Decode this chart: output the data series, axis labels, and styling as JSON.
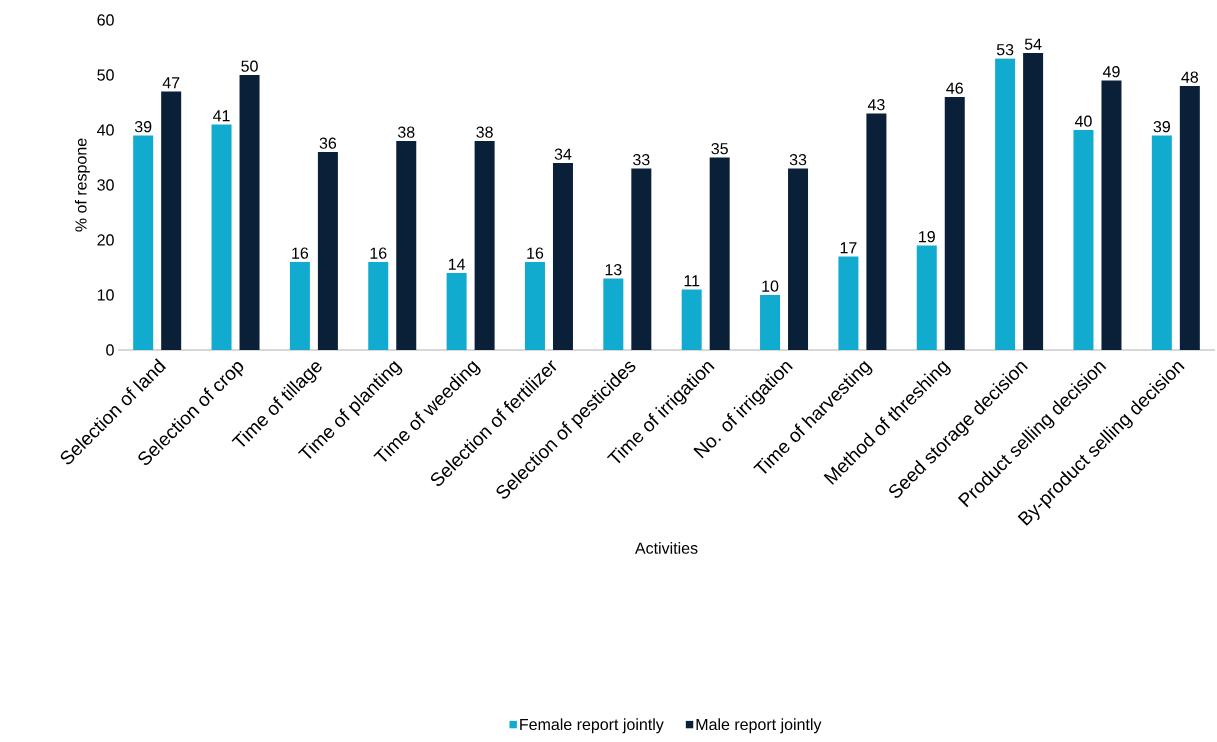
{
  "chart_data": {
    "type": "bar",
    "xlabel": "Activities",
    "ylabel": "% of respone",
    "categories": [
      "Selection of land",
      "Selection of crop",
      "Time of tillage",
      "Time of planting",
      "Time of weeding",
      "Selection of fertilizer",
      "Selection of pesticides",
      "Time of irrigation",
      "No. of irrigation",
      "Time of harvesting",
      "Method of threshing",
      "Seed storage decision",
      "Product selling decision",
      "By-product selling decision"
    ],
    "series": [
      {
        "name": "Female report jointly",
        "color": "#12abd0",
        "values": [
          39,
          41,
          16,
          16,
          14,
          16,
          13,
          11,
          10,
          17,
          19,
          53,
          40,
          39
        ]
      },
      {
        "name": "Male report jointly",
        "color": "#0a1f38",
        "values": [
          47,
          50,
          36,
          38,
          38,
          34,
          33,
          35,
          33,
          43,
          46,
          54,
          49,
          48
        ]
      }
    ],
    "ylim": [
      0,
      60
    ],
    "yticks": [
      0,
      10,
      20,
      30,
      40,
      50,
      60
    ],
    "data_labels": true,
    "legend": "bottom",
    "grid": false
  }
}
